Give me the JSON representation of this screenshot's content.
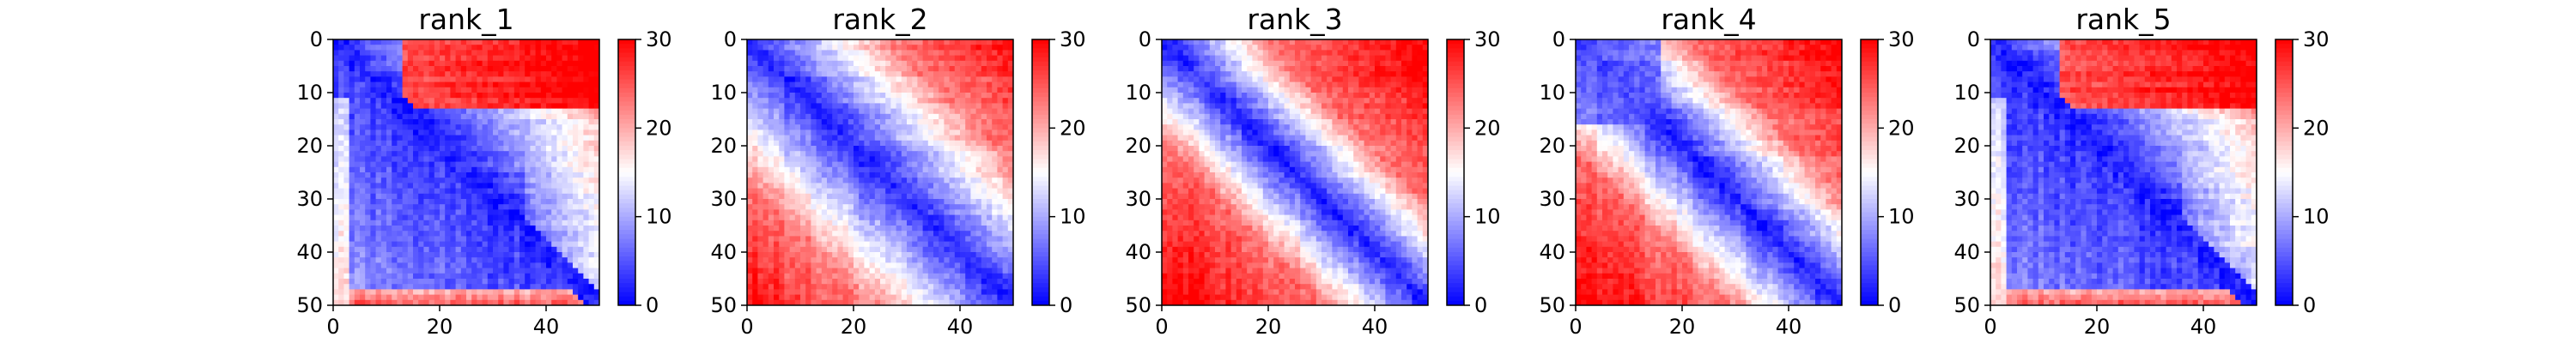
{
  "chart_data": [
    {
      "type": "heatmap",
      "title": "rank_1",
      "matrix_size": 50,
      "pattern": "blue_main",
      "x_ticks": [
        0,
        20,
        40
      ],
      "y_ticks": [
        0,
        10,
        20,
        30,
        40,
        50
      ],
      "colorbar": {
        "min": 0,
        "max": 30,
        "ticks": [
          0,
          10,
          20,
          30
        ],
        "colormap": "bwr"
      }
    },
    {
      "type": "heatmap",
      "title": "rank_2",
      "matrix_size": 50,
      "pattern": "diagonal_band",
      "x_ticks": [
        0,
        20,
        40
      ],
      "y_ticks": [
        0,
        10,
        20,
        30,
        40,
        50
      ],
      "colorbar": {
        "min": 0,
        "max": 30,
        "ticks": [
          0,
          10,
          20,
          30
        ],
        "colormap": "bwr"
      }
    },
    {
      "type": "heatmap",
      "title": "rank_3",
      "matrix_size": 50,
      "pattern": "narrow_diagonal",
      "x_ticks": [
        0,
        20,
        40
      ],
      "y_ticks": [
        0,
        10,
        20,
        30,
        40,
        50
      ],
      "colorbar": {
        "min": 0,
        "max": 30,
        "ticks": [
          0,
          10,
          20,
          30
        ],
        "colormap": "bwr"
      }
    },
    {
      "type": "heatmap",
      "title": "rank_4",
      "matrix_size": 50,
      "pattern": "diagonal_with_block",
      "x_ticks": [
        0,
        20,
        40
      ],
      "y_ticks": [
        0,
        10,
        20,
        30,
        40,
        50
      ],
      "colorbar": {
        "min": 0,
        "max": 30,
        "ticks": [
          0,
          10,
          20,
          30
        ],
        "colormap": "bwr"
      }
    },
    {
      "type": "heatmap",
      "title": "rank_5",
      "matrix_size": 50,
      "pattern": "blue_main",
      "x_ticks": [
        0,
        20,
        40
      ],
      "y_ticks": [
        0,
        10,
        20,
        30,
        40,
        50
      ],
      "colorbar": {
        "min": 0,
        "max": 30,
        "ticks": [
          0,
          10,
          20,
          30
        ],
        "colormap": "bwr"
      }
    }
  ]
}
